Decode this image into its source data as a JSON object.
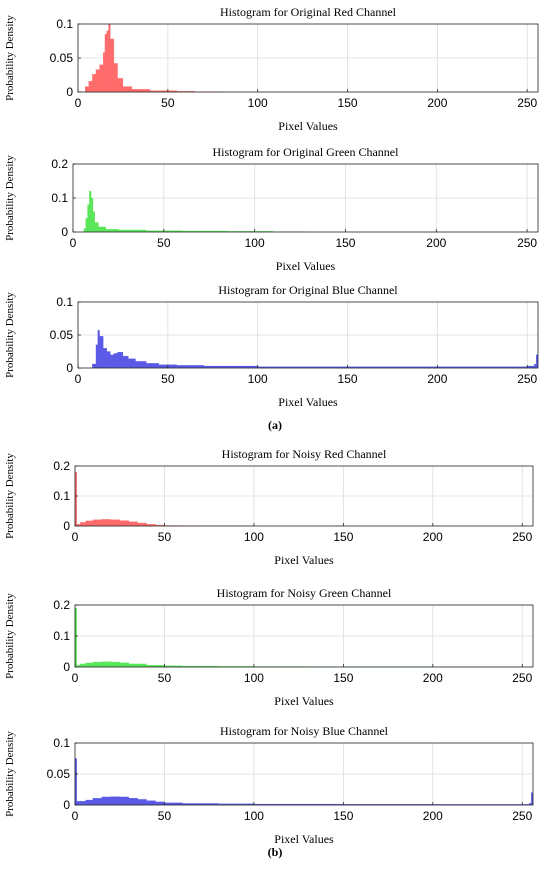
{
  "figure": {
    "caption_a": "(a)",
    "caption_b": "(b)"
  },
  "chart_data": [
    {
      "type": "bar",
      "title": "Histogram for Original Red Channel",
      "xlabel": "Pixel Values",
      "ylabel": "Probability Density",
      "xlim": [
        0,
        256
      ],
      "ylim": [
        0,
        0.1
      ],
      "xticks": [
        0,
        50,
        100,
        150,
        200,
        250
      ],
      "yticks": [
        0,
        0.05,
        0.1
      ],
      "ytick_labels": [
        "0",
        "0.05",
        "0.1"
      ],
      "grid": true,
      "color": "#ff6b6b",
      "series": [
        {
          "x": [
            2,
            4,
            6,
            8,
            10,
            12,
            14,
            15,
            16,
            17,
            18,
            20,
            22,
            25,
            30,
            40,
            55,
            65,
            80
          ],
          "values": [
            0.0,
            0.008,
            0.016,
            0.026,
            0.033,
            0.04,
            0.058,
            0.085,
            0.09,
            0.1,
            0.078,
            0.042,
            0.02,
            0.008,
            0.004,
            0.002,
            0.001,
            0.0005,
            0.0
          ]
        }
      ]
    },
    {
      "type": "bar",
      "title": "Histogram for Original Green Channel",
      "xlabel": "Pixel Values",
      "ylabel": "Probability Density",
      "xlim": [
        0,
        256
      ],
      "ylim": [
        0,
        0.2
      ],
      "xticks": [
        0,
        50,
        100,
        150,
        200,
        250
      ],
      "yticks": [
        0,
        0.1,
        0.2
      ],
      "ytick_labels": [
        "0",
        "0.1",
        "0.2"
      ],
      "grid": true,
      "color": "#5ae65a",
      "series": [
        {
          "x": [
            6,
            7,
            8,
            9,
            10,
            11,
            12,
            14,
            18,
            25,
            40,
            60,
            85,
            110,
            130
          ],
          "values": [
            0.01,
            0.04,
            0.08,
            0.12,
            0.1,
            0.06,
            0.028,
            0.015,
            0.008,
            0.006,
            0.004,
            0.003,
            0.002,
            0.001,
            0.0
          ]
        }
      ]
    },
    {
      "type": "bar",
      "title": "Histogram for Original Blue Channel",
      "xlabel": "Pixel Values",
      "ylabel": "Probability Density",
      "xlim": [
        0,
        256
      ],
      "ylim": [
        0,
        0.1
      ],
      "xticks": [
        0,
        50,
        100,
        150,
        200,
        250
      ],
      "yticks": [
        0,
        0.05,
        0.1
      ],
      "ytick_labels": [
        "0",
        "0.05",
        "0.1"
      ],
      "grid": true,
      "color": "#5a5ae6",
      "series": [
        {
          "x": [
            8,
            10,
            11,
            12,
            14,
            16,
            18,
            20,
            22,
            25,
            28,
            32,
            38,
            45,
            55,
            70,
            100,
            150,
            200,
            250,
            254,
            255
          ],
          "values": [
            0.006,
            0.035,
            0.057,
            0.048,
            0.03,
            0.025,
            0.02,
            0.022,
            0.024,
            0.018,
            0.014,
            0.01,
            0.007,
            0.005,
            0.004,
            0.003,
            0.002,
            0.002,
            0.002,
            0.003,
            0.006,
            0.02
          ]
        }
      ]
    },
    {
      "type": "bar",
      "title": "Histogram for Noisy Red Channel",
      "xlabel": "Pixel Values",
      "ylabel": "Probability Density",
      "xlim": [
        0,
        256
      ],
      "ylim": [
        0,
        0.2
      ],
      "xticks": [
        0,
        50,
        100,
        150,
        200,
        250
      ],
      "yticks": [
        0,
        0.1,
        0.2
      ],
      "ytick_labels": [
        "0",
        "0.1",
        "0.2"
      ],
      "grid": true,
      "color": "#ff6b6b",
      "series": [
        {
          "x": [
            0,
            1,
            3,
            6,
            10,
            15,
            20,
            25,
            30,
            35,
            40,
            45,
            50,
            60,
            70,
            100,
            150,
            200,
            250,
            255
          ],
          "values": [
            0.18,
            0.006,
            0.012,
            0.017,
            0.021,
            0.022,
            0.021,
            0.018,
            0.014,
            0.01,
            0.006,
            0.003,
            0.0015,
            0.0005,
            0.0002,
            0.0,
            0.0,
            0.0,
            0.0,
            0.0
          ]
        }
      ]
    },
    {
      "type": "bar",
      "title": "Histogram for Noisy Green Channel",
      "xlabel": "Pixel Values",
      "ylabel": "Probability Density",
      "xlim": [
        0,
        256
      ],
      "ylim": [
        0,
        0.2
      ],
      "xticks": [
        0,
        50,
        100,
        150,
        200,
        250
      ],
      "yticks": [
        0,
        0.1,
        0.2
      ],
      "ytick_labels": [
        "0",
        "0.1",
        "0.2"
      ],
      "grid": true,
      "color": "#5ae65a",
      "series": [
        {
          "x": [
            0,
            1,
            3,
            6,
            10,
            15,
            20,
            25,
            30,
            40,
            50,
            60,
            80,
            100,
            130,
            160,
            200,
            250,
            255
          ],
          "values": [
            0.19,
            0.006,
            0.01,
            0.013,
            0.016,
            0.017,
            0.016,
            0.014,
            0.01,
            0.006,
            0.004,
            0.003,
            0.002,
            0.0015,
            0.001,
            0.0007,
            0.0004,
            0.0002,
            0.0
          ]
        }
      ]
    },
    {
      "type": "bar",
      "title": "Histogram for Noisy Blue Channel",
      "xlabel": "Pixel Values",
      "ylabel": "Probability Density",
      "xlim": [
        0,
        256
      ],
      "ylim": [
        0,
        0.1
      ],
      "xticks": [
        0,
        50,
        100,
        150,
        200,
        250
      ],
      "yticks": [
        0,
        0.05,
        0.1
      ],
      "ytick_labels": [
        "0",
        "0.05",
        "0.1"
      ],
      "grid": true,
      "color": "#5a5ae6",
      "series": [
        {
          "x": [
            0,
            1,
            3,
            6,
            10,
            15,
            20,
            25,
            30,
            35,
            40,
            45,
            50,
            60,
            80,
            100,
            150,
            200,
            250,
            254,
            255
          ],
          "values": [
            0.075,
            0.006,
            0.006,
            0.008,
            0.011,
            0.013,
            0.0135,
            0.013,
            0.011,
            0.009,
            0.007,
            0.005,
            0.0035,
            0.0025,
            0.002,
            0.0015,
            0.0012,
            0.001,
            0.001,
            0.003,
            0.02
          ]
        }
      ]
    }
  ]
}
